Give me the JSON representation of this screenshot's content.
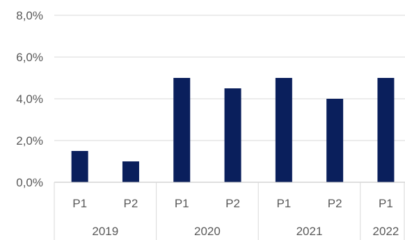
{
  "chart_data": {
    "type": "bar",
    "title": "",
    "xlabel": "",
    "ylabel": "",
    "ylim": [
      0,
      8
    ],
    "y_ticks": [
      0,
      2,
      4,
      6,
      8
    ],
    "y_tick_labels": [
      "0,0%",
      "2,0%",
      "4,0%",
      "6,0%",
      "8,0%"
    ],
    "grid": true,
    "bar_color": "#0a1f5c",
    "categories": [
      "P1",
      "P2",
      "P1",
      "P2",
      "P1",
      "P2",
      "P1"
    ],
    "groups": [
      {
        "label": "2019",
        "span": 2
      },
      {
        "label": "2020",
        "span": 2
      },
      {
        "label": "2021",
        "span": 2
      },
      {
        "label": "2022",
        "span": 1
      }
    ],
    "values": [
      1.5,
      1.0,
      5.0,
      4.5,
      5.0,
      4.0,
      5.0
    ]
  }
}
